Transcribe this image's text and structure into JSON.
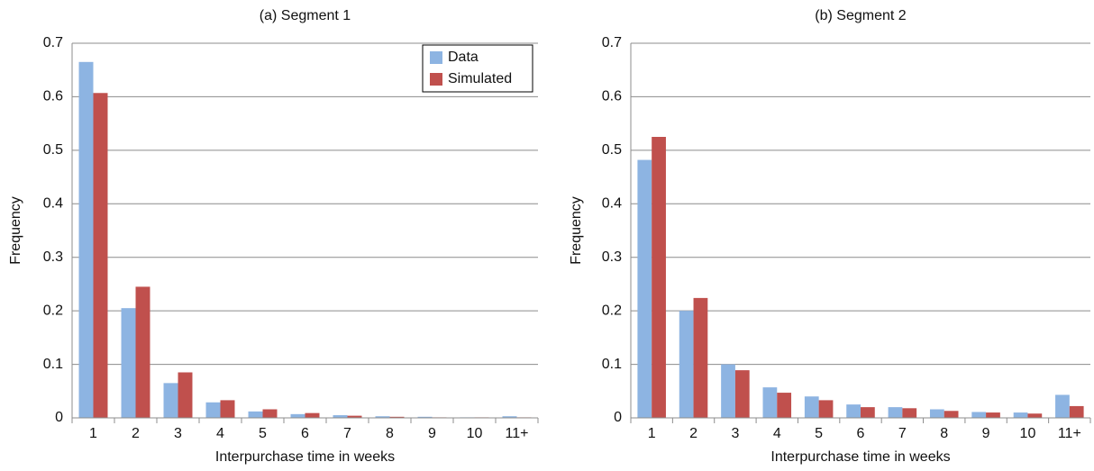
{
  "chart_data": [
    {
      "type": "bar",
      "title": "(a) Segment 1",
      "x_label": "Interpurchase time in weeks",
      "y_label": "Frequency",
      "categories": [
        "1",
        "2",
        "3",
        "4",
        "5",
        "6",
        "7",
        "8",
        "9",
        "10",
        "11+"
      ],
      "series": [
        {
          "name": "Data",
          "color": "#8db4e2",
          "values": [
            0.665,
            0.205,
            0.065,
            0.029,
            0.012,
            0.007,
            0.005,
            0.003,
            0.002,
            0.001,
            0.003
          ]
        },
        {
          "name": "Simulated",
          "color": "#c0504d",
          "values": [
            0.607,
            0.245,
            0.085,
            0.033,
            0.016,
            0.009,
            0.004,
            0.002,
            0.001,
            0.001,
            0.001
          ]
        }
      ],
      "ylim": [
        0,
        0.7
      ],
      "yticks": [
        0,
        0.1,
        0.2,
        0.3,
        0.4,
        0.5,
        0.6,
        0.7
      ],
      "grid": true,
      "legend": "upper right"
    },
    {
      "type": "bar",
      "title": "(b) Segment 2",
      "x_label": "Interpurchase time in weeks",
      "y_label": "Frequency",
      "categories": [
        "1",
        "2",
        "3",
        "4",
        "5",
        "6",
        "7",
        "8",
        "9",
        "10",
        "11+"
      ],
      "series": [
        {
          "color": "#8db4e2",
          "values": [
            0.482,
            0.2,
            0.1,
            0.057,
            0.04,
            0.025,
            0.02,
            0.016,
            0.011,
            0.01,
            0.043
          ]
        },
        {
          "color": "#c0504d",
          "values": [
            0.525,
            0.224,
            0.089,
            0.047,
            0.033,
            0.02,
            0.018,
            0.013,
            0.01,
            0.008,
            0.022
          ]
        }
      ],
      "ylim": [
        0,
        0.7
      ],
      "yticks": [
        0,
        0.1,
        0.2,
        0.3,
        0.4,
        0.5,
        0.6,
        0.7
      ],
      "grid": true
    }
  ]
}
